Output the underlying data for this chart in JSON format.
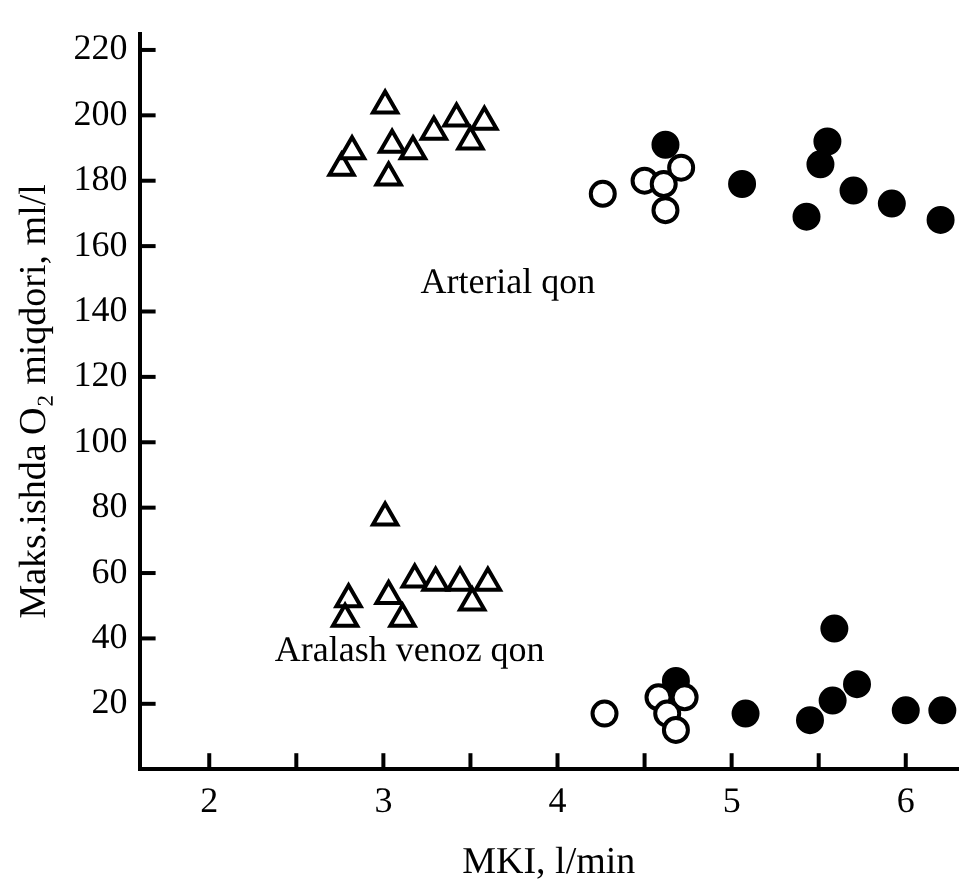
{
  "chart_data": {
    "type": "scatter",
    "xlabel": "MKI, l/min",
    "ylabel": "Maks.ishda O₂ miqdori, ml/l",
    "xlim": [
      1.6,
      6.3
    ],
    "xticks": [
      2,
      {
        "value": 2.5,
        "label": null
      },
      3,
      {
        "value": 3.5,
        "label": null
      },
      4,
      {
        "value": 4.5,
        "label": null
      },
      5,
      {
        "value": 5.5,
        "label": null
      },
      6
    ],
    "ylim": [
      0,
      225
    ],
    "yticks": [
      20,
      40,
      60,
      80,
      100,
      120,
      140,
      160,
      180,
      200,
      220
    ],
    "grid": false,
    "legend": false,
    "series": [
      {
        "color": "#ffffff",
        "marker": "triangle",
        "x": [
          2.76,
          2.82,
          3.01,
          3.03,
          3.05,
          3.17,
          3.29,
          3.42,
          3.5,
          3.58,
          3.01,
          2.8,
          2.78,
          3.03,
          3.11,
          3.18,
          3.3,
          3.44,
          3.51,
          3.6
        ],
        "values": [
          184,
          189,
          203,
          181,
          191,
          189,
          195,
          199,
          192,
          198,
          77,
          52,
          46,
          53,
          46,
          58,
          57,
          57,
          51,
          57
        ]
      },
      {
        "color": "#ffffff",
        "marker": "circle",
        "x": [
          4.26,
          4.5,
          4.61,
          4.71,
          4.62,
          4.27,
          4.58,
          4.73,
          4.63,
          4.68
        ],
        "values": [
          176,
          180,
          179,
          184,
          171,
          17,
          22,
          22,
          17,
          12
        ]
      },
      {
        "color": "#000000",
        "marker": "circle",
        "x": [
          4.62,
          5.06,
          5.55,
          5.51,
          5.7,
          5.92,
          5.43,
          6.2,
          4.68,
          5.08,
          5.59,
          5.58,
          5.72,
          5.45,
          6.0,
          6.21
        ],
        "values": [
          191,
          179,
          192,
          185,
          177,
          173,
          169,
          168,
          27,
          17,
          43,
          21,
          26,
          15,
          18,
          18
        ]
      }
    ],
    "annotations": [
      "Arterial qon",
      "Aralash venoz qon"
    ]
  }
}
